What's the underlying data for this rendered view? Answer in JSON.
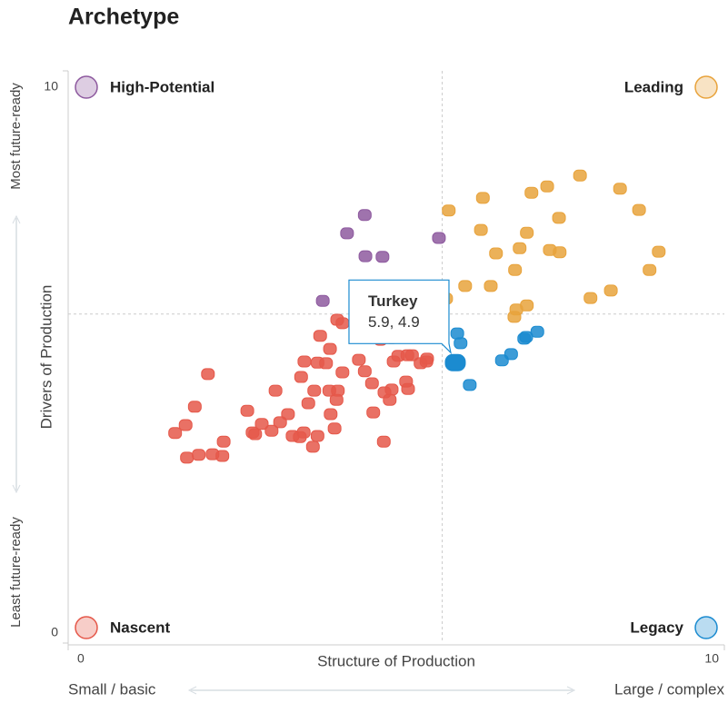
{
  "chart_data": {
    "type": "scatter",
    "title": "Archetype",
    "xlabel": "Structure of Production",
    "ylabel": "Drivers of Production",
    "x_low_label": "Small / basic",
    "x_high_label": "Large / complex",
    "y_low_label": "Least future-ready",
    "y_high_label": "Most future-ready",
    "xlim": [
      0,
      10
    ],
    "ylim": [
      0,
      10
    ],
    "xticks": [
      0,
      10
    ],
    "yticks": [
      0,
      10
    ],
    "x_divider": 5.7,
    "y_divider": 5.75,
    "series": [
      {
        "name": "High-Potential",
        "color": "#8e5a9f",
        "corner": "top-left",
        "x": [
          4.52,
          4.25,
          4.53,
          4.79,
          5.65,
          3.88
        ],
        "y": [
          7.48,
          7.16,
          6.76,
          6.75,
          7.08,
          5.98
        ]
      },
      {
        "name": "Leading",
        "color": "#e8a33c",
        "corner": "top-right",
        "x": [
          7.8,
          7.3,
          7.06,
          8.41,
          6.32,
          5.8,
          8.7,
          7.48,
          6.29,
          6.99,
          9.0,
          7.34,
          7.49,
          6.52,
          6.88,
          6.81,
          8.86,
          6.05,
          6.44,
          8.27,
          7.96,
          6.99,
          6.83,
          6.8,
          5.76
        ],
        "y": [
          8.17,
          7.98,
          7.87,
          7.94,
          7.78,
          7.56,
          7.57,
          7.43,
          7.22,
          7.17,
          6.84,
          6.87,
          6.83,
          6.81,
          6.9,
          6.52,
          6.52,
          6.24,
          6.24,
          6.16,
          6.03,
          5.9,
          5.83,
          5.7,
          6.02
        ]
      },
      {
        "name": "Nascent",
        "color": "#e5584a",
        "corner": "bottom-left",
        "x": [
          2.13,
          1.93,
          1.79,
          1.63,
          1.81,
          1.99,
          2.2,
          2.35,
          2.37,
          2.73,
          2.81,
          2.85,
          2.95,
          3.1,
          3.23,
          3.35,
          3.16,
          3.42,
          3.53,
          3.59,
          3.73,
          3.8,
          3.66,
          3.75,
          3.55,
          3.6,
          3.8,
          3.84,
          3.99,
          3.93,
          3.98,
          4.09,
          4.11,
          4.18,
          4.0,
          4.06,
          4.1,
          4.18,
          4.43,
          4.52,
          4.63,
          4.65,
          4.81,
          4.82,
          4.9,
          4.93,
          4.96,
          5.03,
          5.17,
          5.24,
          5.15,
          5.18,
          5.37,
          5.46,
          5.47,
          4.76,
          4.93,
          5.15
        ],
        "y": [
          4.7,
          4.13,
          3.81,
          3.67,
          3.24,
          3.29,
          3.3,
          3.27,
          3.52,
          4.06,
          3.68,
          3.65,
          3.83,
          3.71,
          3.86,
          4.0,
          4.41,
          3.62,
          3.6,
          3.68,
          3.43,
          3.62,
          4.19,
          4.41,
          4.65,
          4.92,
          4.9,
          5.37,
          5.14,
          4.89,
          4.41,
          4.25,
          4.41,
          4.73,
          4.0,
          3.75,
          5.65,
          5.59,
          4.95,
          4.75,
          4.54,
          4.03,
          3.52,
          4.38,
          4.25,
          4.43,
          4.92,
          5.02,
          5.03,
          5.03,
          4.57,
          4.44,
          4.89,
          4.92,
          4.97,
          5.3,
          5.33,
          5.43
        ]
      },
      {
        "name": "Legacy",
        "color": "#1b8bd0",
        "corner": "bottom-right",
        "x": [
          5.93,
          5.98,
          6.12,
          6.61,
          6.75,
          6.95,
          6.98,
          7.15
        ],
        "y": [
          5.41,
          5.24,
          4.51,
          4.94,
          5.05,
          5.32,
          5.35,
          5.44
        ]
      }
    ],
    "tooltip": {
      "name": "Turkey",
      "series": 3,
      "x": 5.9,
      "y": 4.9,
      "label": "5.9, 4.9"
    }
  }
}
